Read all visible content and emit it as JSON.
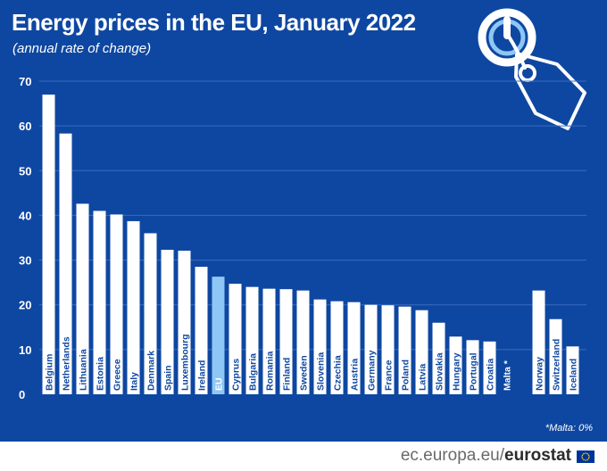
{
  "chart_data": {
    "type": "bar",
    "title": "Energy prices in the EU, January 2022",
    "subtitle": "(annual rate of change)",
    "ylim": [
      0,
      70
    ],
    "yticks": [
      0,
      10,
      20,
      30,
      40,
      50,
      60,
      70
    ],
    "grid": true,
    "categories": [
      "Belgium",
      "Netherlands",
      "Lithuania",
      "Estonia",
      "Greece",
      "Italy",
      "Denmark",
      "Spain",
      "Luxembourg",
      "Ireland",
      "EU",
      "Cyprus",
      "Bulgaria",
      "Romania",
      "Finland",
      "Sweden",
      "Slovenia",
      "Czechia",
      "Austria",
      "Germany",
      "France",
      "Poland",
      "Latvia",
      "Slovakia",
      "Hungary",
      "Portugal",
      "Croatia",
      "Malta *",
      "Norway",
      "Switzerland",
      "Iceland"
    ],
    "values": [
      67.0,
      58.3,
      42.6,
      41.0,
      40.2,
      38.7,
      36.0,
      32.3,
      32.1,
      28.5,
      26.3,
      24.7,
      24.0,
      23.6,
      23.5,
      23.2,
      21.2,
      20.8,
      20.6,
      20.0,
      19.9,
      19.6,
      18.8,
      16.0,
      12.9,
      12.1,
      11.8,
      0,
      23.2,
      16.8,
      10.7
    ],
    "highlight": "EU",
    "colors": {
      "bar": "#ffffff",
      "highlight_bar": "#8ec7f5",
      "background": "#0e47a1",
      "grid": "#3a6bbf",
      "label": "#0e47a1",
      "highlight_label": "#ffffff"
    }
  },
  "note": "*Malta: 0%",
  "footer": {
    "site": "ec.europa.eu/",
    "brand": "eurostat"
  },
  "icons": {
    "logo": "power-price-tag-icon",
    "flag": "eu-flag-icon"
  }
}
